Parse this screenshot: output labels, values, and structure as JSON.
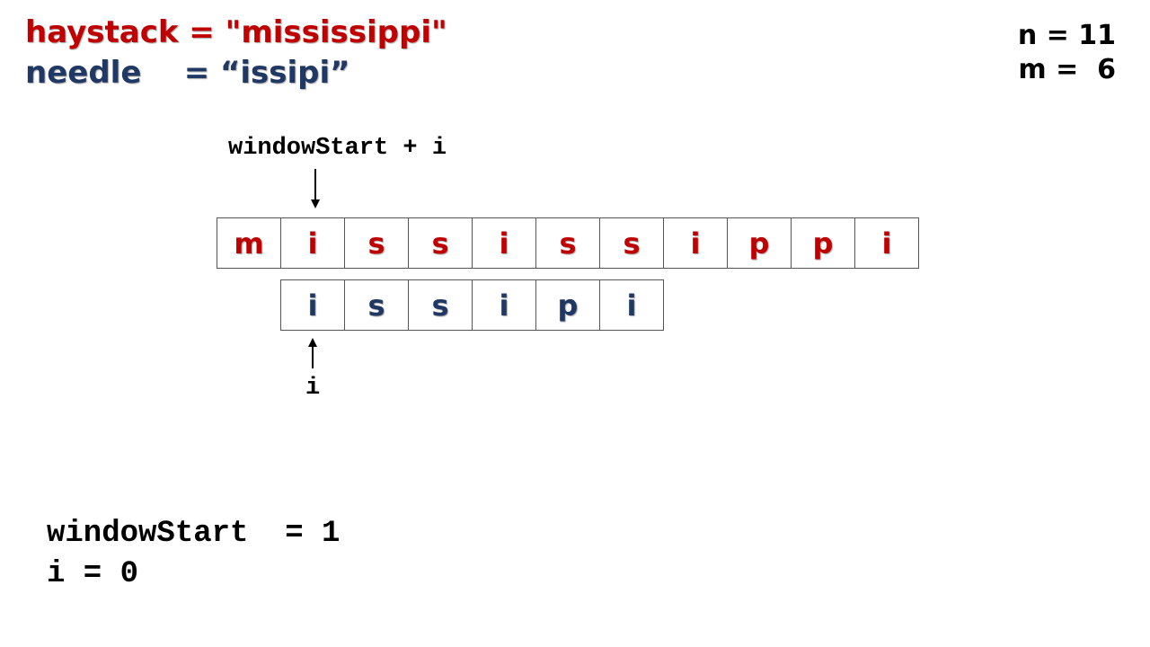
{
  "header": {
    "haystack_line": "haystack = \"mississippi\"",
    "needle_line": "needle    = “issipi”",
    "n_line": "n = 11",
    "m_line": "m =  6"
  },
  "pointers": {
    "top_label": "windowStart + i",
    "bottom_label": "i"
  },
  "haystack_chars": [
    "m",
    "i",
    "s",
    "s",
    "i",
    "s",
    "s",
    "i",
    "p",
    "p",
    "i"
  ],
  "needle_chars": [
    "i",
    "s",
    "s",
    "i",
    "p",
    "i"
  ],
  "state": {
    "window_start_line": "windowStart  = 1",
    "i_line": "i = 0"
  },
  "colors": {
    "haystack": "#c00000",
    "needle": "#1f3864"
  }
}
